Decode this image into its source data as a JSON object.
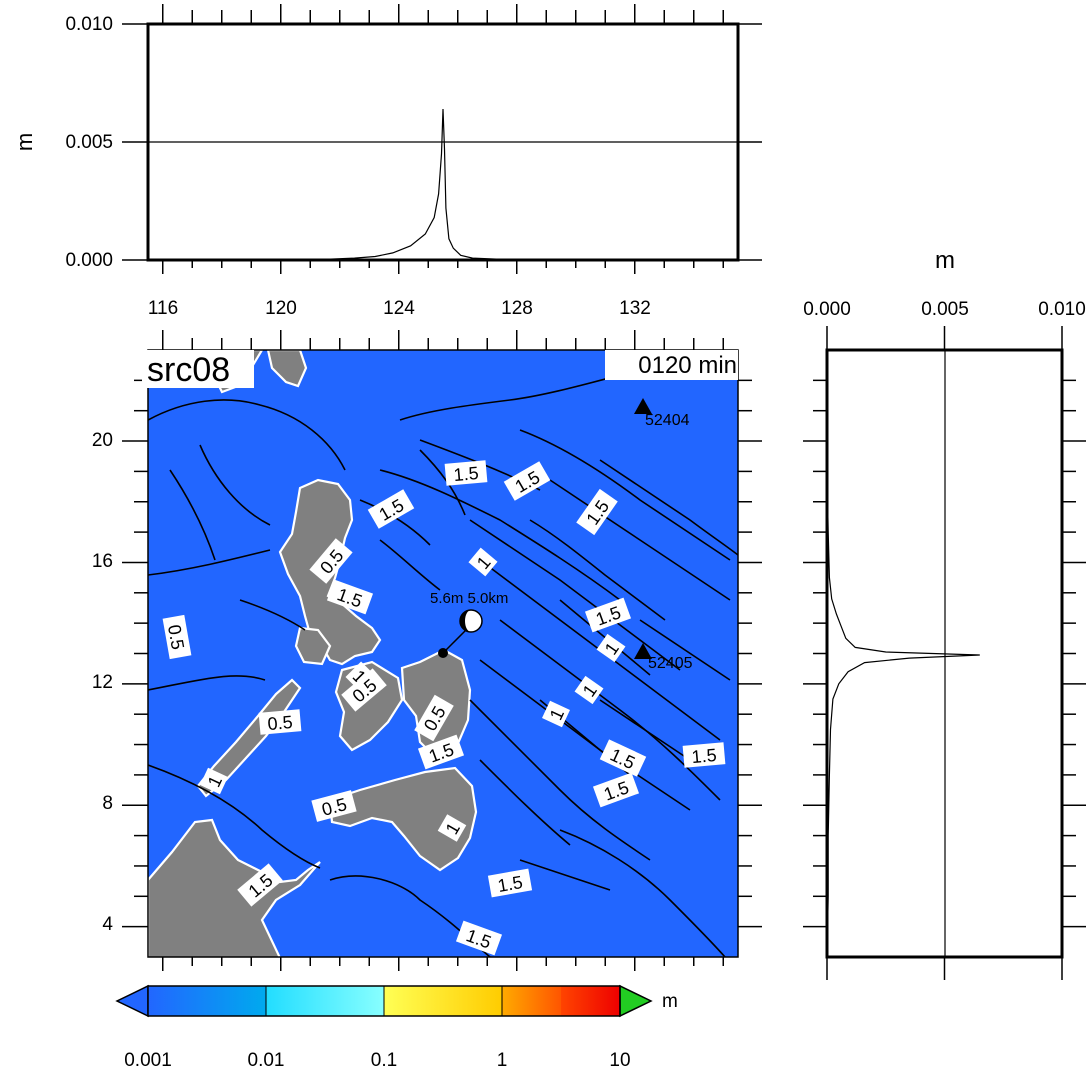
{
  "chart_data": [
    {
      "panel": "top-profile",
      "type": "line",
      "ylabel": "m",
      "ylim": [
        0.0,
        0.01
      ],
      "yticks": [
        "0.000",
        "0.005",
        "0.010"
      ],
      "xlim": [
        115.5,
        135.5
      ],
      "xticks": [
        "116",
        "120",
        "124",
        "128",
        "132"
      ],
      "grid": "horizontal line at 0.005",
      "series": [
        {
          "x": [
            115.5,
            120.5,
            121.5,
            122.5,
            123.2,
            123.8,
            124.4,
            124.9,
            125.2,
            125.35,
            125.45,
            125.5,
            125.55,
            125.6,
            125.7,
            125.85,
            126.1,
            126.5,
            127.5,
            129,
            132,
            134.5,
            135.0,
            135.5
          ],
          "y": [
            0.0,
            0.0,
            3e-05,
            8e-05,
            0.00015,
            0.0003,
            0.0006,
            0.0011,
            0.0018,
            0.0028,
            0.0045,
            0.0064,
            0.0047,
            0.0022,
            0.0009,
            0.0005,
            0.0002,
            8e-05,
            3e-05,
            1e-05,
            0.0,
            2e-05,
            1e-05,
            0.0
          ]
        }
      ]
    },
    {
      "panel": "map",
      "type": "heatmap",
      "title": "src08",
      "time_label": "0120 min",
      "xlim": [
        115.5,
        135.5
      ],
      "ylim": [
        3,
        23
      ],
      "xticks": [
        "116",
        "120",
        "124",
        "128",
        "132"
      ],
      "yticks": [
        "4",
        "8",
        "12",
        "16",
        "20"
      ],
      "contour_labels": [
        "1.5",
        "1.5",
        "1.5",
        "1.5",
        "1",
        "0.5",
        "1.5",
        "0.5",
        "1.5",
        "1",
        "1",
        "1",
        "0.5",
        "1",
        "0.5",
        "0.5",
        "1.5",
        "1.5",
        "1.5",
        "1.5",
        "0.5",
        "1",
        "1.5",
        "1.5",
        "1.5",
        "1"
      ],
      "stations": [
        {
          "name": "52404",
          "lon": 132.2,
          "lat": 21.1
        },
        {
          "name": "52405",
          "lon": 132.2,
          "lat": 12.9
        }
      ],
      "source_label": "5.6m 5.0km",
      "colors": {
        "ocean": "#2266ff",
        "land": "#808080",
        "coast": "#ffffff"
      }
    },
    {
      "panel": "right-profile",
      "type": "line",
      "xlabel": "m",
      "xlim": [
        0.0,
        0.01
      ],
      "xticks": [
        "0.000",
        "0.005",
        "0.010"
      ],
      "grid": "vertical line at 0.005",
      "series": [
        {
          "lat": [
            3,
            5,
            7,
            9,
            10.5,
            11.5,
            12.0,
            12.4,
            12.7,
            12.85,
            12.95,
            13.05,
            13.2,
            13.5,
            13.9,
            14.3,
            14.8,
            15.5,
            17,
            19,
            21,
            23
          ],
          "y": [
            0.0,
            5e-05,
            5e-05,
            0.0001,
            0.00015,
            0.00025,
            0.0005,
            0.0009,
            0.0016,
            0.0035,
            0.0065,
            0.0025,
            0.0012,
            0.0008,
            0.0006,
            0.0004,
            0.0002,
            0.0001,
            5e-05,
            0.0,
            0.0,
            0.0
          ]
        }
      ]
    },
    {
      "panel": "colorbar",
      "type": "colorbar",
      "unit": "m",
      "ticks": [
        "0.001",
        "0.01",
        "0.1",
        "1",
        "10"
      ],
      "colors": [
        "#2266ff",
        "#00aaee",
        "#33ffff",
        "#ffff55",
        "#ff8800",
        "#ee0000"
      ],
      "under_color": "#2266ff",
      "over_color": "#22cc22"
    }
  ]
}
